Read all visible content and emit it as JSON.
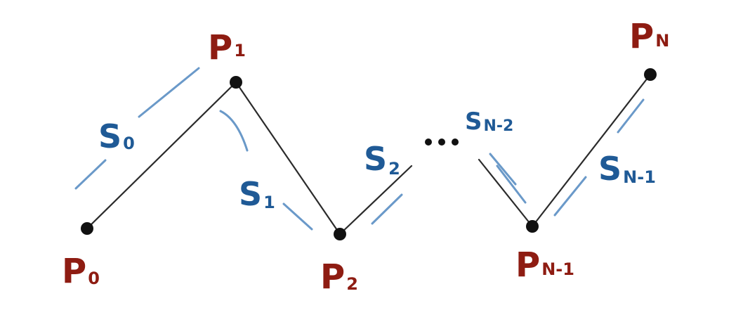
{
  "colors": {
    "background": "#ffffff",
    "polyline": "#2b2b2b",
    "vertex": "#111111",
    "point_label": "#8e1c12",
    "segment_label": "#1f5a96",
    "segment_stroke": "#5a8ec3"
  },
  "points": [
    {
      "base": "P",
      "sub": "0"
    },
    {
      "base": "P",
      "sub": "1"
    },
    {
      "base": "P",
      "sub": "2"
    },
    {
      "base": "P",
      "sub": "N-1"
    },
    {
      "base": "P",
      "sub": "N"
    }
  ],
  "segments": [
    {
      "base": "S",
      "sub": "0"
    },
    {
      "base": "S",
      "sub": "1"
    },
    {
      "base": "S",
      "sub": "2"
    },
    {
      "base": "S",
      "sub": "N-2"
    },
    {
      "base": "S",
      "sub": "N-1"
    }
  ],
  "ellipsis": "..."
}
